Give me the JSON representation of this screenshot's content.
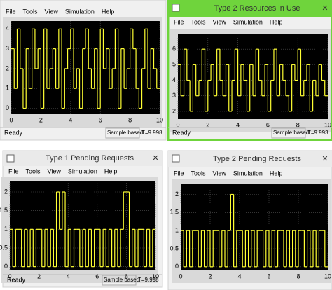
{
  "windows": [
    {
      "menu": [
        "File",
        "Tools",
        "View",
        "Simulation",
        "Help"
      ],
      "status": {
        "left": "Ready",
        "mode": "Sample based",
        "time": "T=9.998"
      },
      "plot": {
        "type": "line",
        "color": "#ffff33",
        "grid": true,
        "x": [
          0,
          0.2,
          0.4,
          0.6,
          0.8,
          1,
          1.2,
          1.4,
          1.6,
          1.8,
          2,
          2.2,
          2.4,
          2.6,
          2.8,
          3,
          3.2,
          3.4,
          3.6,
          3.8,
          4,
          4.2,
          4.4,
          4.6,
          4.8,
          5,
          5.2,
          5.4,
          5.6,
          5.8,
          6,
          6.2,
          6.4,
          6.6,
          6.8,
          7,
          7.2,
          7.4,
          7.6,
          7.8,
          8,
          8.2,
          8.4,
          8.6,
          8.8,
          9,
          9.2,
          9.4,
          9.6,
          9.8
        ],
        "values": [
          3,
          1,
          4,
          2,
          0,
          3,
          1,
          4,
          2,
          3,
          0,
          4,
          1,
          2,
          3,
          1,
          4,
          0,
          2,
          3,
          4,
          1,
          2,
          0,
          3,
          4,
          2,
          1,
          3,
          0,
          4,
          2,
          3,
          1,
          2,
          4,
          0,
          3,
          1,
          2,
          4,
          3,
          1,
          0,
          2,
          4,
          1,
          3,
          2,
          1
        ],
        "xlim": [
          0,
          10
        ],
        "xticks": [
          0,
          2,
          4,
          6,
          8,
          10
        ],
        "ylim": [
          -0.3,
          4.4
        ],
        "yticks": [
          0,
          1,
          2,
          3,
          4
        ]
      }
    },
    {
      "title": "Type 2 Resources in Use",
      "menu": [
        "File",
        "Tools",
        "View",
        "Simulation",
        "Help"
      ],
      "status": {
        "left": "Ready",
        "mode": "Sample based",
        "time": "T=9.993"
      },
      "plot": {
        "type": "line",
        "color": "#ffff33",
        "grid": true,
        "x": [
          0,
          0.2,
          0.4,
          0.6,
          0.8,
          1,
          1.2,
          1.4,
          1.6,
          1.8,
          2,
          2.2,
          2.4,
          2.6,
          2.8,
          3,
          3.2,
          3.4,
          3.6,
          3.8,
          4,
          4.2,
          4.4,
          4.6,
          4.8,
          5,
          5.2,
          5.4,
          5.6,
          5.8,
          6,
          6.2,
          6.4,
          6.6,
          6.8,
          7,
          7.2,
          7.4,
          7.6,
          7.8,
          8,
          8.2,
          8.4,
          8.6,
          8.8,
          9,
          9.2,
          9.4,
          9.6,
          9.8
        ],
        "values": [
          5,
          3,
          6,
          4,
          2,
          5,
          3,
          4,
          6,
          2,
          4,
          5,
          3,
          6,
          4,
          3,
          5,
          2,
          4,
          6,
          3,
          5,
          4,
          2,
          5,
          3,
          6,
          4,
          3,
          5,
          2,
          4,
          6,
          3,
          5,
          4,
          3,
          2,
          5,
          4,
          6,
          3,
          4,
          5,
          2,
          4,
          3,
          5,
          4,
          3
        ],
        "xlim": [
          0,
          10
        ],
        "xticks": [
          0,
          2,
          4,
          6,
          8,
          10
        ],
        "ylim": [
          1.5,
          7
        ],
        "yticks": [
          2,
          3,
          4,
          5,
          6
        ]
      }
    },
    {
      "title": "Type 1 Pending Requests",
      "menu": [
        "File",
        "Tools",
        "View",
        "Simulation",
        "Help"
      ],
      "status": {
        "left": "Ready",
        "mode": "Sample based",
        "time": "T=9.998"
      },
      "plot": {
        "type": "line",
        "color": "#ffff33",
        "grid": true,
        "x": [
          0,
          0.2,
          0.4,
          0.6,
          0.8,
          1,
          1.2,
          1.4,
          1.6,
          1.8,
          2,
          2.2,
          2.4,
          2.6,
          2.8,
          3,
          3.2,
          3.4,
          3.6,
          3.8,
          4,
          4.2,
          4.4,
          4.6,
          4.8,
          5,
          5.2,
          5.4,
          5.6,
          5.8,
          6,
          6.2,
          6.4,
          6.6,
          6.8,
          7,
          7.2,
          7.4,
          7.6,
          7.8,
          8,
          8.2,
          8.4,
          8.6,
          8.8,
          9,
          9.2,
          9.4,
          9.6,
          9.8
        ],
        "values": [
          1,
          0,
          1,
          1,
          0,
          1,
          0,
          1,
          0,
          1,
          1,
          0,
          1,
          0,
          1,
          0,
          2,
          1,
          2,
          0,
          1,
          0,
          1,
          1,
          0,
          1,
          0,
          1,
          0,
          1,
          1,
          0,
          1,
          0,
          1,
          0,
          1,
          0,
          1,
          2,
          2,
          0,
          1,
          0,
          1,
          1,
          0,
          1,
          0,
          1
        ],
        "xlim": [
          0,
          10
        ],
        "xticks": [
          0,
          2,
          4,
          6,
          8,
          10
        ],
        "ylim": [
          -0.1,
          2.3
        ],
        "yticks": [
          0,
          0.5,
          1,
          1.5,
          2
        ]
      }
    },
    {
      "title": "Type 2 Pending Requests",
      "menu": [
        "File",
        "Tools",
        "View",
        "Simulation",
        "Help"
      ],
      "plot": {
        "type": "line",
        "color": "#ffff33",
        "grid": true,
        "x": [
          0,
          0.2,
          0.4,
          0.6,
          0.8,
          1,
          1.2,
          1.4,
          1.6,
          1.8,
          2,
          2.2,
          2.4,
          2.6,
          2.8,
          3,
          3.2,
          3.4,
          3.6,
          3.8,
          4,
          4.2,
          4.4,
          4.6,
          4.8,
          5,
          5.2,
          5.4,
          5.6,
          5.8,
          6,
          6.2,
          6.4,
          6.6,
          6.8,
          7,
          7.2,
          7.4,
          7.6,
          7.8,
          8,
          8.2,
          8.4,
          8.6,
          8.8,
          9,
          9.2,
          9.4,
          9.6,
          9.8
        ],
        "values": [
          1,
          0,
          1,
          0,
          1,
          1,
          0,
          1,
          0,
          1,
          0,
          1,
          1,
          0,
          1,
          0,
          1,
          2,
          0,
          1,
          1,
          0,
          1,
          0,
          1,
          0,
          1,
          1,
          0,
          1,
          0,
          1,
          0,
          1,
          1,
          0,
          1,
          0,
          1,
          0,
          1,
          1,
          0,
          1,
          0,
          1,
          0,
          1,
          1,
          0
        ],
        "xlim": [
          0,
          10
        ],
        "xticks": [
          0,
          2,
          4,
          6,
          8,
          10
        ],
        "ylim": [
          -0.1,
          2.3
        ],
        "yticks": [
          0,
          0.5,
          1,
          1.5,
          2
        ]
      }
    }
  ]
}
